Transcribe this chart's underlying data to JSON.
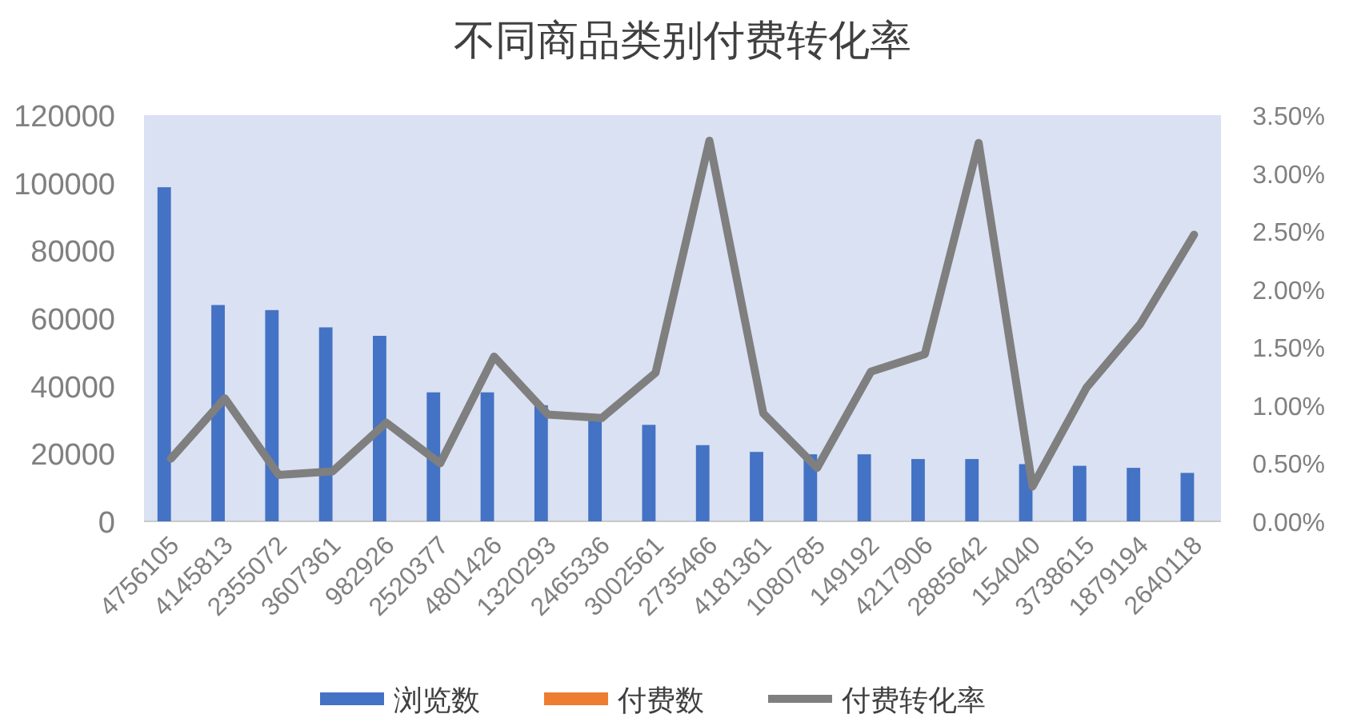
{
  "chart_data": {
    "type": "bar",
    "title": "不同商品类别付费转化率",
    "categories": [
      "4756105",
      "4145813",
      "2355072",
      "3607361",
      "982926",
      "2520377",
      "4801426",
      "1320293",
      "2465336",
      "3002561",
      "2735466",
      "4181361",
      "1080785",
      "149192",
      "4217906",
      "2885642",
      "154040",
      "3738615",
      "1879194",
      "2640118"
    ],
    "series": [
      {
        "name": "浏览数",
        "color": "#4472c4",
        "values": [
          98700,
          63900,
          62400,
          57300,
          54800,
          38100,
          38100,
          34300,
          30800,
          28500,
          22500,
          20500,
          19800,
          19800,
          18400,
          18400,
          16900,
          16400,
          15800,
          14300
        ]
      },
      {
        "name": "付费数",
        "color": "#ed7d31",
        "values": [
          null,
          null,
          null,
          null,
          null,
          null,
          null,
          null,
          null,
          null,
          null,
          null,
          null,
          null,
          null,
          null,
          null,
          null,
          null,
          null
        ]
      },
      {
        "name": "付费转化率",
        "color": "#7f7f7f",
        "type": "line",
        "axis": "y2",
        "values": [
          0.54,
          1.06,
          0.4,
          0.43,
          0.85,
          0.5,
          1.42,
          0.92,
          0.89,
          1.28,
          3.28,
          0.93,
          0.46,
          1.29,
          1.44,
          3.26,
          0.3,
          1.15,
          1.7,
          2.47
        ]
      }
    ],
    "ylim": [
      0,
      120000
    ],
    "yticks": [
      0,
      20000,
      40000,
      60000,
      80000,
      100000,
      120000
    ],
    "y2lim": [
      0,
      3.5
    ],
    "y2ticks": [
      {
        "value": 0,
        "label": "0.00%"
      },
      {
        "value": 0.5,
        "label": "0.50%"
      },
      {
        "value": 1,
        "label": "1.00%"
      },
      {
        "value": 1.5,
        "label": "1.50%"
      },
      {
        "value": 2,
        "label": "2.00%"
      },
      {
        "value": 2.5,
        "label": "2.50%"
      },
      {
        "value": 3,
        "label": "3.00%"
      },
      {
        "value": 3.5,
        "label": "3.50%"
      }
    ],
    "grid": false,
    "legend": "bottom",
    "marker": "none",
    "line_style": "solid"
  }
}
